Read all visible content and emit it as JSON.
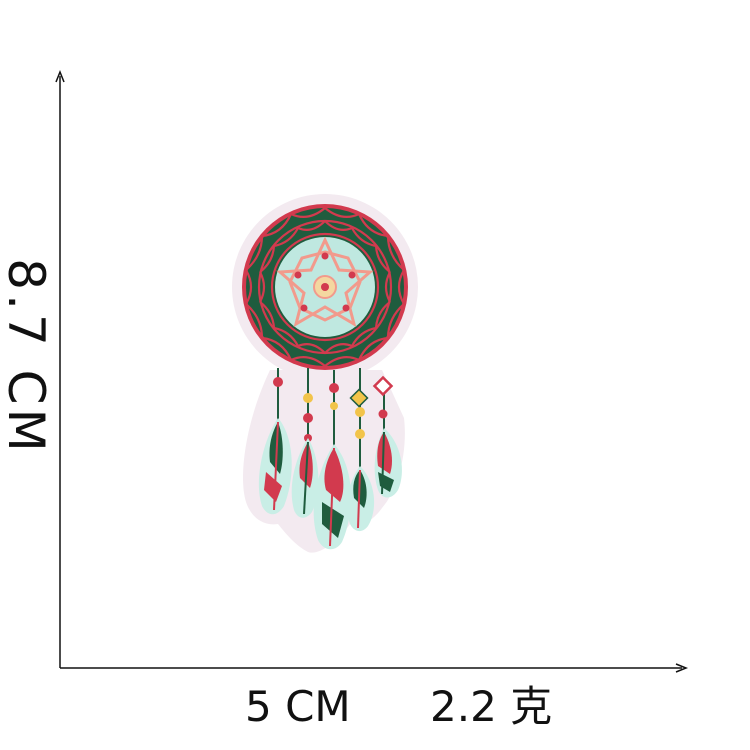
{
  "labels": {
    "height": "8.7 CM",
    "width": "5 CM",
    "weight": "2.2 克"
  },
  "colors": {
    "axis": "#111111",
    "felt_backing": "#f3eaf0",
    "ring_green": "#1f5c3e",
    "stitch_red": "#d23a4e",
    "center_mint": "#bfe8e0",
    "star_pink": "#f29a8c",
    "bead_yellow": "#f2c44a",
    "feather_mint": "#c9eee6"
  },
  "image": {
    "subject": "dreamcatcher-embroidered-patch"
  }
}
